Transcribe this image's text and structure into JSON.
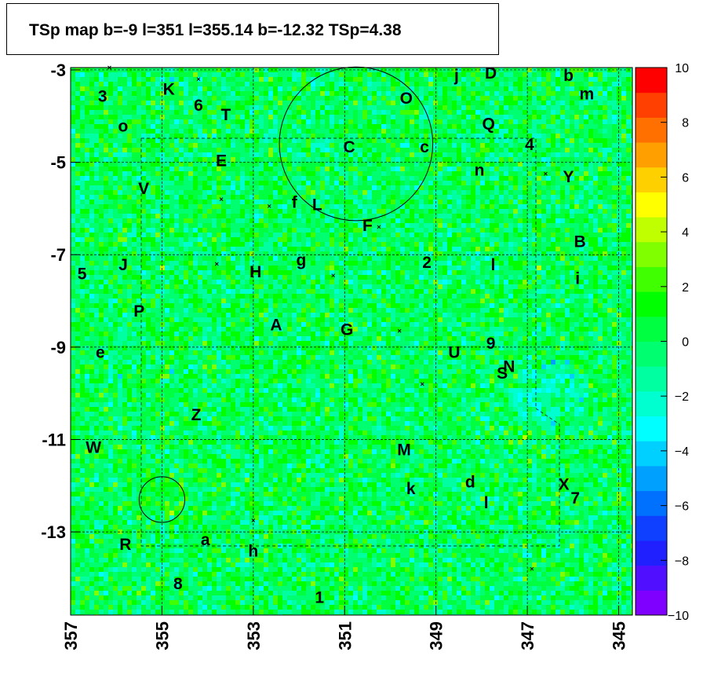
{
  "title": "TSp map b=-9 l=351 l=355.14 b=-12.32 TSp=4.38",
  "chart_data": {
    "type": "heatmap",
    "title": "TSp map b=-9 l=351 l=355.14 b=-12.32 TSp=4.38",
    "x_range": [
      357.0,
      344.7
    ],
    "y_range": [
      -14.8,
      -2.95
    ],
    "x_ticks": [
      "357",
      "355",
      "353",
      "351",
      "349",
      "347",
      "345"
    ],
    "y_ticks": [
      "-3",
      "-5",
      "-7",
      "-9",
      "-11",
      "-13"
    ],
    "colorbar": {
      "min": -10,
      "max": 10,
      "ticks": [
        "10",
        "8",
        "6",
        "4",
        "2",
        "0",
        "−2",
        "−4",
        "−6",
        "−8",
        "−10"
      ],
      "colors": [
        "#8000ff",
        "#5010ff",
        "#2020ff",
        "#1040ff",
        "#0070ff",
        "#00a0ff",
        "#00d0ff",
        "#00ffff",
        "#00ffd0",
        "#00ffa0",
        "#00ff70",
        "#00ff40",
        "#00ff00",
        "#40ff00",
        "#80ff00",
        "#c0ff00",
        "#ffff00",
        "#ffd000",
        "#ffa000",
        "#ff7000",
        "#ff4000",
        "#ff0000"
      ]
    },
    "grid": true,
    "circles": [
      {
        "l": 350.75,
        "b": -4.6,
        "r_deg": 1.68
      },
      {
        "l": 355.0,
        "b": -12.3,
        "r_deg": 0.5
      }
    ],
    "labels": [
      {
        "t": "3",
        "l": 356.3,
        "b": -3.55
      },
      {
        "t": "K",
        "l": 354.85,
        "b": -3.4
      },
      {
        "t": "6",
        "l": 354.2,
        "b": -3.75
      },
      {
        "t": "T",
        "l": 353.6,
        "b": -3.95
      },
      {
        "t": "o",
        "l": 355.85,
        "b": -4.2
      },
      {
        "t": "C",
        "l": 350.9,
        "b": -4.65
      },
      {
        "t": "c",
        "l": 349.25,
        "b": -4.65
      },
      {
        "t": "O",
        "l": 349.65,
        "b": -3.6
      },
      {
        "t": "j",
        "l": 348.55,
        "b": -3.1
      },
      {
        "t": "D",
        "l": 347.8,
        "b": -3.05
      },
      {
        "t": "b",
        "l": 346.1,
        "b": -3.1
      },
      {
        "t": "m",
        "l": 345.7,
        "b": -3.5
      },
      {
        "t": "Q",
        "l": 347.85,
        "b": -4.15
      },
      {
        "t": "4",
        "l": 346.95,
        "b": -4.6
      },
      {
        "t": "E",
        "l": 353.7,
        "b": -4.95
      },
      {
        "t": "n",
        "l": 348.05,
        "b": -5.15
      },
      {
        "t": "Y",
        "l": 346.1,
        "b": -5.3
      },
      {
        "t": "V",
        "l": 355.4,
        "b": -5.55
      },
      {
        "t": "f",
        "l": 352.1,
        "b": -5.85
      },
      {
        "t": "L",
        "l": 351.6,
        "b": -5.9
      },
      {
        "t": "F",
        "l": 350.5,
        "b": -6.35
      },
      {
        "t": "B",
        "l": 345.85,
        "b": -6.7
      },
      {
        "t": "5",
        "l": 356.75,
        "b": -7.4
      },
      {
        "t": "J",
        "l": 355.85,
        "b": -7.2
      },
      {
        "t": "g",
        "l": 351.95,
        "b": -7.1
      },
      {
        "t": "2",
        "l": 349.2,
        "b": -7.15
      },
      {
        "t": "l",
        "l": 347.75,
        "b": -7.2
      },
      {
        "t": "H",
        "l": 352.95,
        "b": -7.35
      },
      {
        "t": "i",
        "l": 345.9,
        "b": -7.5
      },
      {
        "t": "P",
        "l": 355.5,
        "b": -8.2
      },
      {
        "t": "A",
        "l": 352.5,
        "b": -8.5
      },
      {
        "t": "G",
        "l": 350.95,
        "b": -8.6
      },
      {
        "t": "9",
        "l": 347.8,
        "b": -8.9
      },
      {
        "t": "U",
        "l": 348.6,
        "b": -9.1
      },
      {
        "t": "e",
        "l": 356.35,
        "b": -9.1
      },
      {
        "t": "N",
        "l": 347.4,
        "b": -9.4
      },
      {
        "t": "S",
        "l": 347.55,
        "b": -9.55
      },
      {
        "t": "Z",
        "l": 354.25,
        "b": -10.45
      },
      {
        "t": "W",
        "l": 356.5,
        "b": -11.15
      },
      {
        "t": "M",
        "l": 349.7,
        "b": -11.2
      },
      {
        "t": "d",
        "l": 348.25,
        "b": -11.9
      },
      {
        "t": "k",
        "l": 349.55,
        "b": -12.05
      },
      {
        "t": "X",
        "l": 346.2,
        "b": -11.95
      },
      {
        "t": "7",
        "l": 345.95,
        "b": -12.25
      },
      {
        "t": "l",
        "l": 347.9,
        "b": -12.35
      },
      {
        "t": "a",
        "l": 354.05,
        "b": -13.15
      },
      {
        "t": "R",
        "l": 355.8,
        "b": -13.25
      },
      {
        "t": "h",
        "l": 353.0,
        "b": -13.4
      },
      {
        "t": "8",
        "l": 354.65,
        "b": -14.1
      },
      {
        "t": "1",
        "l": 351.55,
        "b": -14.4
      }
    ],
    "markers": [
      {
        "l": 356.15,
        "b": -2.95
      },
      {
        "l": 354.2,
        "b": -3.2
      },
      {
        "l": 353.7,
        "b": -5.8
      },
      {
        "l": 352.65,
        "b": -5.95
      },
      {
        "l": 353.8,
        "b": -7.2
      },
      {
        "l": 351.25,
        "b": -7.45
      },
      {
        "l": 350.25,
        "b": -6.4
      },
      {
        "l": 349.8,
        "b": -8.65
      },
      {
        "l": 346.6,
        "b": -5.25
      },
      {
        "l": 349.3,
        "b": -9.8
      },
      {
        "l": 353.0,
        "b": -12.75
      },
      {
        "l": 346.9,
        "b": -13.8
      }
    ]
  }
}
